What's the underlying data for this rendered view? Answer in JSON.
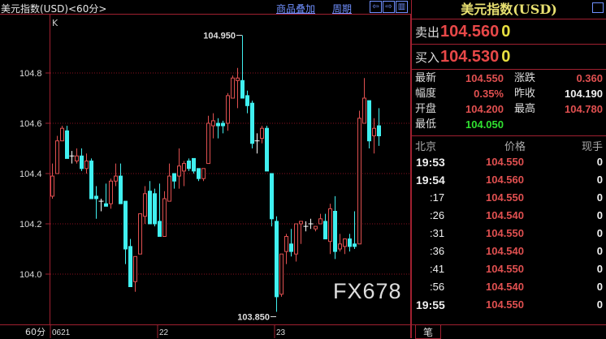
{
  "header": {
    "title": "美元指数(USD)<60分>",
    "overlay_link": "商品叠加",
    "period_link": "周期",
    "nav_left": "⇦",
    "nav_right": "⇨",
    "nav_panel": "▥"
  },
  "chart_label": "K",
  "period_label": "60分",
  "colors": {
    "up": "#e05050",
    "down": "#40f0f0",
    "doji": "#ffffff",
    "grid": "#8a1020",
    "price_red": "#e84848",
    "price_green": "#30e030",
    "zero": "#e8e040"
  },
  "chart_data": {
    "type": "candlestick",
    "y_ticks": [
      "104.8",
      "104.6",
      "104.4",
      "104.2",
      "104.0"
    ],
    "ylim": [
      103.8,
      104.98
    ],
    "grid": true,
    "x_ticks": [
      {
        "label": "0621",
        "index": 0
      },
      {
        "label": "22",
        "index": 22
      },
      {
        "label": "23",
        "index": 46
      }
    ],
    "annotations": [
      {
        "label": "104.950",
        "index": 39,
        "value": 104.95
      },
      {
        "label": "103.850",
        "index": 46,
        "value": 103.85
      }
    ],
    "ohlc": [
      [
        104.31,
        104.44,
        104.3,
        104.39
      ],
      [
        104.4,
        104.55,
        104.4,
        104.53
      ],
      [
        104.53,
        104.59,
        104.53,
        104.58
      ],
      [
        104.57,
        104.59,
        104.46,
        104.46
      ],
      [
        104.47,
        104.49,
        104.44,
        104.47
      ],
      [
        104.45,
        104.5,
        104.44,
        104.47
      ],
      [
        104.47,
        104.5,
        104.41,
        104.42
      ],
      [
        104.42,
        104.48,
        104.4,
        104.45
      ],
      [
        104.45,
        104.46,
        104.3,
        104.3
      ],
      [
        104.31,
        104.35,
        104.22,
        104.3
      ],
      [
        104.29,
        104.3,
        104.25,
        104.29
      ],
      [
        104.28,
        104.36,
        104.27,
        104.27
      ],
      [
        104.28,
        104.38,
        104.26,
        104.37
      ],
      [
        104.37,
        104.44,
        104.35,
        104.39
      ],
      [
        104.39,
        104.44,
        104.28,
        104.28
      ],
      [
        104.29,
        104.29,
        104.04,
        104.1
      ],
      [
        104.11,
        104.14,
        103.95,
        103.95
      ],
      [
        103.97,
        104.07,
        103.93,
        104.07
      ],
      [
        104.08,
        104.24,
        104.08,
        104.24
      ],
      [
        104.23,
        104.35,
        104.2,
        104.32
      ],
      [
        104.33,
        104.37,
        104.2,
        104.2
      ],
      [
        104.32,
        104.34,
        104.19,
        104.2
      ],
      [
        104.21,
        104.36,
        104.15,
        104.15
      ],
      [
        104.15,
        104.33,
        104.15,
        104.3
      ],
      [
        104.29,
        104.44,
        104.29,
        104.39
      ],
      [
        104.4,
        104.4,
        104.34,
        104.37
      ],
      [
        104.39,
        104.5,
        104.34,
        104.43
      ],
      [
        104.41,
        104.45,
        104.35,
        104.44
      ],
      [
        104.45,
        104.46,
        104.41,
        104.42
      ],
      [
        104.46,
        104.46,
        104.4,
        104.41
      ],
      [
        104.42,
        104.42,
        104.37,
        104.38
      ],
      [
        104.38,
        104.42,
        104.37,
        104.42
      ],
      [
        104.44,
        104.63,
        104.44,
        104.6
      ],
      [
        104.59,
        104.64,
        104.54,
        104.61
      ],
      [
        104.6,
        104.62,
        104.54,
        104.59
      ],
      [
        104.6,
        104.61,
        104.56,
        104.59
      ],
      [
        104.6,
        104.72,
        104.57,
        104.71
      ],
      [
        104.7,
        104.79,
        104.7,
        104.78
      ],
      [
        104.77,
        104.82,
        104.66,
        104.78
      ],
      [
        104.77,
        104.95,
        104.7,
        104.7
      ],
      [
        104.71,
        104.73,
        104.64,
        104.67
      ],
      [
        104.68,
        104.69,
        104.5,
        104.52
      ],
      [
        104.53,
        104.56,
        104.48,
        104.53
      ],
      [
        104.54,
        104.59,
        104.52,
        104.58
      ],
      [
        104.58,
        104.59,
        104.41,
        104.41
      ],
      [
        104.4,
        104.4,
        104.19,
        104.22
      ],
      [
        104.21,
        104.23,
        103.85,
        103.91
      ],
      [
        103.92,
        104.08,
        103.91,
        104.08
      ],
      [
        104.09,
        104.16,
        104.04,
        104.15
      ],
      [
        104.12,
        104.18,
        104.07,
        104.09
      ],
      [
        104.08,
        104.2,
        104.05,
        104.2
      ],
      [
        104.2,
        104.21,
        104.12,
        104.21
      ],
      [
        104.19,
        104.21,
        104.17,
        104.19
      ],
      [
        104.2,
        104.22,
        104.18,
        104.2
      ],
      [
        104.18,
        104.19,
        104.17,
        104.19
      ],
      [
        104.2,
        104.24,
        104.2,
        104.22
      ],
      [
        104.21,
        104.24,
        104.14,
        104.14
      ],
      [
        104.13,
        104.28,
        104.08,
        104.26
      ],
      [
        104.25,
        104.31,
        104.06,
        104.09
      ],
      [
        104.1,
        104.16,
        104.09,
        104.12
      ],
      [
        104.11,
        104.14,
        104.08,
        104.14
      ],
      [
        104.14,
        104.16,
        104.09,
        104.11
      ],
      [
        104.12,
        104.25,
        104.1,
        104.11
      ],
      [
        104.12,
        104.65,
        104.12,
        104.62
      ],
      [
        104.6,
        104.78,
        104.6,
        104.7
      ],
      [
        104.69,
        104.69,
        104.5,
        104.53
      ],
      [
        104.55,
        104.62,
        104.48,
        104.58
      ],
      [
        104.59,
        104.66,
        104.51,
        104.55
      ]
    ]
  },
  "panel": {
    "title": "美元指数(USD)",
    "sell": {
      "label": "卖出",
      "price": "104.560",
      "volume": "0"
    },
    "buy": {
      "label": "买入",
      "price": "104.530",
      "volume": "0"
    },
    "stats": {
      "latest_label": "最新",
      "latest": "104.550",
      "change_label": "涨跌",
      "change": "0.360",
      "amplitude_label": "幅度",
      "amplitude": "0.35%",
      "prev_close_label": "昨收",
      "prev_close": "104.190",
      "open_label": "开盘",
      "open": "104.200",
      "high_label": "最高",
      "high": "104.780",
      "low_label": "最低",
      "low": "104.050"
    },
    "ticks_header": {
      "time": "北京",
      "price": "价格",
      "volume": "现手"
    },
    "ticks": [
      {
        "time": "19:53",
        "price": "104.550",
        "volume": "0"
      },
      {
        "time": "19:54",
        "price": "104.560",
        "volume": "0"
      },
      {
        "time": ":17",
        "price": "104.550",
        "volume": "0"
      },
      {
        "time": ":26",
        "price": "104.540",
        "volume": "0"
      },
      {
        "time": ":31",
        "price": "104.550",
        "volume": "0"
      },
      {
        "time": ":36",
        "price": "104.540",
        "volume": "0"
      },
      {
        "time": ":41",
        "price": "104.550",
        "volume": "0"
      },
      {
        "time": ":56",
        "price": "104.540",
        "volume": "0"
      },
      {
        "time": "19:55",
        "price": "104.550",
        "volume": "0"
      }
    ],
    "tab": "笔"
  },
  "watermark": "FX678"
}
